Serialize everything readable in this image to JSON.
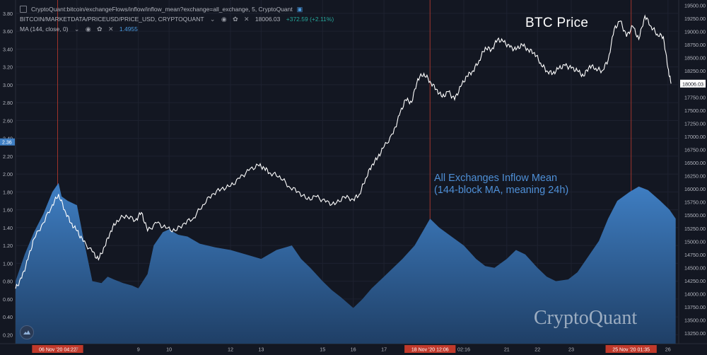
{
  "header": {
    "series1_label": "CryptoQuant:bitcoin/exchangeFlows/inflow/inflow_mean?exchange=all_exchange, 5, CryptoQuant",
    "series2_label": "BITCOIN/MARKETDATA/PRICEUSD/PRICE_USD, CRYPTOQUANT",
    "series2_value": "18006.03",
    "series2_change": "+372.59 (+2.11%)",
    "ma_label": "MA (144, close, 0)",
    "ma_value": "1.4955"
  },
  "annotations": {
    "price_title": "BTC Price",
    "inflow_line1": "All Exchanges Inflow Mean",
    "inflow_line2": "(144-block MA, meaning 24h)",
    "brand": "CryptoQuant"
  },
  "colors": {
    "background": "#131722",
    "area_top": "#3f7fc4",
    "area_bottom": "#1f3f66",
    "price_line": "#ffffff",
    "marker_line": "#c0392b",
    "axis_text": "#b2b5be",
    "grid": "#1e2230"
  },
  "chart_data": {
    "type": "area",
    "left_axis": {
      "ticks": [
        0.2,
        0.4,
        0.6,
        0.8,
        1.0,
        1.2,
        1.4,
        1.6,
        1.8,
        2.0,
        2.2,
        2.4,
        2.6,
        2.8,
        3.0,
        3.2,
        3.4,
        3.6,
        3.8
      ],
      "range": [
        0.1,
        3.95
      ],
      "current_label": "2.36"
    },
    "right_axis": {
      "ticks": [
        13250,
        13500,
        13750,
        14000,
        14250,
        14500,
        14750,
        15000,
        15250,
        15500,
        15750,
        16000,
        16250,
        16500,
        16750,
        17000,
        17250,
        17500,
        17750,
        18000,
        18250,
        18500,
        18750,
        19000,
        19250,
        19500
      ],
      "range": [
        13050,
        19600
      ],
      "current_label": "18006.03"
    },
    "x_axis": {
      "ticks": [
        {
          "label": "06 Nov '20  04:22",
          "t": 1.37,
          "highlight": true
        },
        {
          "label": "7",
          "t": 2.0
        },
        {
          "label": "9",
          "t": 4.0
        },
        {
          "label": "10",
          "t": 5.0
        },
        {
          "label": "12",
          "t": 7.0
        },
        {
          "label": "13",
          "t": 8.0
        },
        {
          "label": "15",
          "t": 10.0
        },
        {
          "label": "16",
          "t": 11.0
        },
        {
          "label": "17",
          "t": 12.0
        },
        {
          "label": "18 Nov '20  12:06",
          "t": 13.5,
          "highlight": true
        },
        {
          "label": "02:16",
          "t": 14.6
        },
        {
          "label": "21",
          "t": 16.0
        },
        {
          "label": "22",
          "t": 17.0
        },
        {
          "label": "23",
          "t": 18.1
        },
        {
          "label": "25 Nov '20  01:35",
          "t": 20.05,
          "highlight": true
        },
        {
          "label": "26",
          "t": 21.25
        }
      ],
      "range": [
        0,
        21.6
      ]
    },
    "markers": [
      1.37,
      13.5,
      20.05
    ],
    "series": [
      {
        "name": "All Exchanges Inflow Mean",
        "axis": "left",
        "kind": "area",
        "x": [
          0,
          0.3,
          0.6,
          0.9,
          1.2,
          1.4,
          1.5,
          1.7,
          2.0,
          2.2,
          2.5,
          2.8,
          3.0,
          3.2,
          3.5,
          3.8,
          4.0,
          4.3,
          4.5,
          4.8,
          5.0,
          5.3,
          5.6,
          6.0,
          6.5,
          7.0,
          7.5,
          8.0,
          8.5,
          9.0,
          9.3,
          9.6,
          10.0,
          10.3,
          10.6,
          11.0,
          11.3,
          11.6,
          12.0,
          12.3,
          12.6,
          13.0,
          13.5,
          13.8,
          14.2,
          14.6,
          15.0,
          15.3,
          15.6,
          16.0,
          16.3,
          16.6,
          17.0,
          17.3,
          17.6,
          18.0,
          18.3,
          18.6,
          19.0,
          19.3,
          19.6,
          20.0,
          20.3,
          20.6,
          21.0,
          21.3,
          21.5
        ],
        "y": [
          0.8,
          1.1,
          1.35,
          1.55,
          1.8,
          1.9,
          1.75,
          1.7,
          1.65,
          1.3,
          0.8,
          0.78,
          0.85,
          0.82,
          0.78,
          0.75,
          0.72,
          0.88,
          1.2,
          1.35,
          1.38,
          1.32,
          1.3,
          1.22,
          1.18,
          1.15,
          1.1,
          1.05,
          1.15,
          1.2,
          1.05,
          0.95,
          0.8,
          0.7,
          0.62,
          0.5,
          0.6,
          0.72,
          0.85,
          0.95,
          1.05,
          1.2,
          1.5,
          1.4,
          1.3,
          1.2,
          1.05,
          0.97,
          0.95,
          1.05,
          1.15,
          1.1,
          0.95,
          0.85,
          0.8,
          0.82,
          0.9,
          1.05,
          1.25,
          1.5,
          1.7,
          1.8,
          1.86,
          1.82,
          1.7,
          1.6,
          1.5
        ]
      },
      {
        "name": "BTC Price",
        "axis": "right",
        "kind": "line",
        "x": [
          0,
          0.2,
          0.4,
          0.6,
          0.9,
          1.2,
          1.4,
          1.6,
          1.8,
          2.0,
          2.2,
          2.5,
          2.7,
          2.9,
          3.1,
          3.3,
          3.6,
          3.9,
          4.1,
          4.3,
          4.6,
          4.9,
          5.2,
          5.5,
          5.8,
          6.1,
          6.4,
          6.7,
          7.0,
          7.3,
          7.6,
          7.9,
          8.1,
          8.3,
          8.6,
          8.9,
          9.2,
          9.5,
          9.8,
          10.1,
          10.4,
          10.7,
          11.0,
          11.2,
          11.4,
          11.6,
          11.8,
          12.0,
          12.3,
          12.5,
          12.7,
          12.9,
          13.1,
          13.3,
          13.5,
          13.7,
          13.9,
          14.1,
          14.3,
          14.5,
          14.7,
          14.9,
          15.1,
          15.3,
          15.5,
          15.7,
          15.9,
          16.1,
          16.3,
          16.5,
          16.7,
          16.9,
          17.1,
          17.3,
          17.5,
          17.7,
          17.9,
          18.1,
          18.3,
          18.5,
          18.7,
          18.9,
          19.1,
          19.3,
          19.5,
          19.7,
          19.9,
          20.1,
          20.3,
          20.5,
          20.7,
          20.9,
          21.1,
          21.25,
          21.35
        ],
        "y": [
          14100,
          14300,
          14650,
          15050,
          15350,
          15700,
          15900,
          15600,
          15350,
          15200,
          15000,
          14800,
          14650,
          14900,
          15200,
          15400,
          15500,
          15400,
          15550,
          15200,
          15350,
          15250,
          15200,
          15350,
          15450,
          15700,
          15900,
          16000,
          16050,
          16200,
          16350,
          16450,
          16400,
          16300,
          16250,
          16050,
          15950,
          15800,
          15850,
          15750,
          15700,
          15850,
          15800,
          15900,
          16200,
          16450,
          16600,
          16800,
          17050,
          17400,
          17700,
          17650,
          18100,
          18200,
          18050,
          17900,
          17750,
          17850,
          17700,
          17950,
          18150,
          18250,
          18450,
          18700,
          18650,
          18850,
          18800,
          18700,
          18650,
          18750,
          18650,
          18600,
          18400,
          18250,
          18200,
          18300,
          18350,
          18300,
          18250,
          18150,
          18350,
          18300,
          18250,
          18450,
          19050,
          19200,
          18900,
          19100,
          18850,
          19300,
          19100,
          18950,
          18900,
          18300,
          18006
        ]
      }
    ]
  }
}
